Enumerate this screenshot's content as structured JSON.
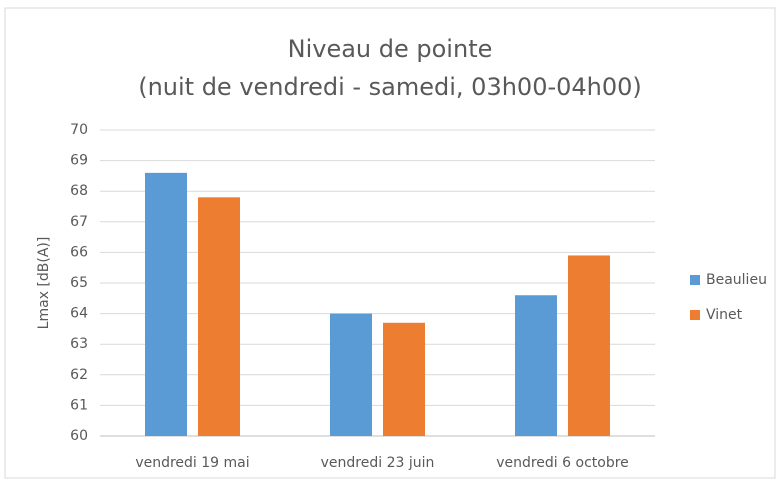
{
  "chart_data": {
    "type": "bar",
    "title": "Niveau de pointe",
    "subtitle": "(nuit de vendredi - samedi, 03h00-04h00)",
    "ylabel": "Lmax [dB(A)]",
    "categories": [
      "vendredi 19 mai",
      "vendredi 23 juin",
      "vendredi 6 octobre"
    ],
    "series": [
      {
        "name": "Beaulieu",
        "color": "#5b9bd5",
        "values": [
          68.6,
          64.0,
          64.6
        ]
      },
      {
        "name": "Vinet",
        "color": "#ed7d31",
        "values": [
          67.8,
          63.7,
          65.9
        ]
      }
    ],
    "ylim": [
      60,
      70
    ],
    "yticks": [
      60,
      61,
      62,
      63,
      64,
      65,
      66,
      67,
      68,
      69,
      70
    ],
    "grid": true,
    "legend": "right"
  }
}
